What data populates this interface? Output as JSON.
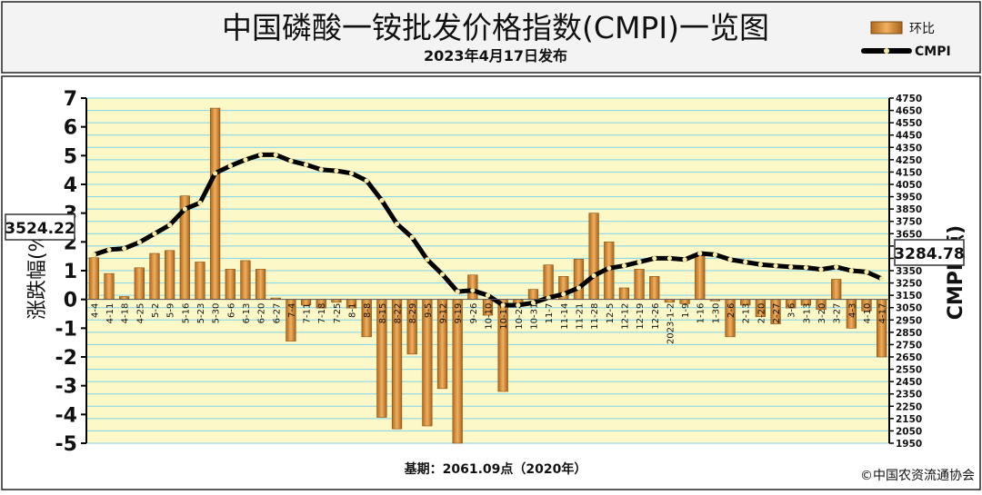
{
  "header": {
    "title": "中国磷酸一铵批发价格指数(CMPI)一览图",
    "subtitle": "2023年4月17日发布"
  },
  "legend": {
    "bar_label": "环比",
    "line_label": "CMPI"
  },
  "footer": {
    "base": "基期：2061.09点（2020年）",
    "copyright": "©中国农资流通协会"
  },
  "callouts": {
    "left": "3524.22",
    "right": "3284.78"
  },
  "chart_data": {
    "type": "bar",
    "ylabel_left": "涨跌幅(%)",
    "ylabel_right": "CMPI(点)",
    "ylim_left": [
      -5,
      7
    ],
    "ylim_right": [
      1950,
      4750
    ],
    "left_ticks": [
      7,
      6,
      5,
      4,
      3,
      2,
      1,
      0,
      -1,
      -2,
      -3,
      -4,
      -5
    ],
    "right_ticks": [
      4750,
      4650,
      4550,
      4450,
      4350,
      4250,
      4150,
      4050,
      3950,
      3850,
      3750,
      3650,
      3550,
      3450,
      3350,
      3250,
      3150,
      3050,
      2950,
      2850,
      2750,
      2650,
      2550,
      2450,
      2350,
      2250,
      2150,
      2050,
      1950
    ],
    "grid": true,
    "legend_position": "top-right",
    "categories": [
      "4-4",
      "4-11",
      "4-18",
      "4-25",
      "5-2",
      "5-9",
      "5-16",
      "5-23",
      "5-30",
      "6-6",
      "6-13",
      "6-20",
      "6-27",
      "7-4",
      "7-11",
      "7-18",
      "7-25",
      "8-1",
      "8-8",
      "8-15",
      "8-22",
      "8-29",
      "9-5",
      "9-12",
      "9-19",
      "9-26",
      "10-10",
      "10-17",
      "10-24",
      "10-31",
      "11-7",
      "11-14",
      "11-21",
      "11-28",
      "12-5",
      "12-12",
      "12-19",
      "12-26",
      "2023-1-2",
      "1-9",
      "1-16",
      "1-30",
      "2-6",
      "2-13",
      "2-20",
      "2-27",
      "3-6",
      "3-13",
      "3-20",
      "3-27",
      "4-3",
      "4-10",
      "4-17"
    ],
    "series": [
      {
        "name": "环比",
        "type": "bar",
        "values": [
          1.45,
          0.9,
          0.1,
          1.1,
          1.6,
          1.7,
          3.6,
          1.3,
          6.65,
          1.05,
          1.35,
          1.05,
          0.05,
          -1.45,
          -0.2,
          -0.3,
          -0.1,
          -0.3,
          -1.3,
          -4.1,
          -4.5,
          -1.9,
          -4.4,
          -3.1,
          -5.0,
          0.85,
          -0.55,
          -3.2,
          -0.2,
          0.35,
          1.2,
          0.8,
          1.4,
          3.0,
          2.0,
          0.4,
          1.05,
          0.8,
          -0.1,
          -0.15,
          1.55,
          -0.05,
          -1.3,
          -0.2,
          -0.6,
          -0.85,
          -0.3,
          -0.2,
          -0.35,
          0.7,
          -1.0,
          -0.4,
          -2.0
        ]
      },
      {
        "name": "CMPI",
        "type": "line",
        "values": [
          3480,
          3520,
          3530,
          3580,
          3650,
          3720,
          3850,
          3900,
          4140,
          4200,
          4250,
          4290,
          4290,
          4240,
          4210,
          4170,
          4160,
          4140,
          4080,
          3920,
          3730,
          3620,
          3440,
          3320,
          3180,
          3190,
          3150,
          3070,
          3070,
          3090,
          3130,
          3160,
          3210,
          3310,
          3370,
          3390,
          3420,
          3450,
          3450,
          3440,
          3490,
          3480,
          3440,
          3420,
          3400,
          3390,
          3380,
          3375,
          3360,
          3380,
          3350,
          3340,
          3284.78
        ]
      }
    ]
  }
}
